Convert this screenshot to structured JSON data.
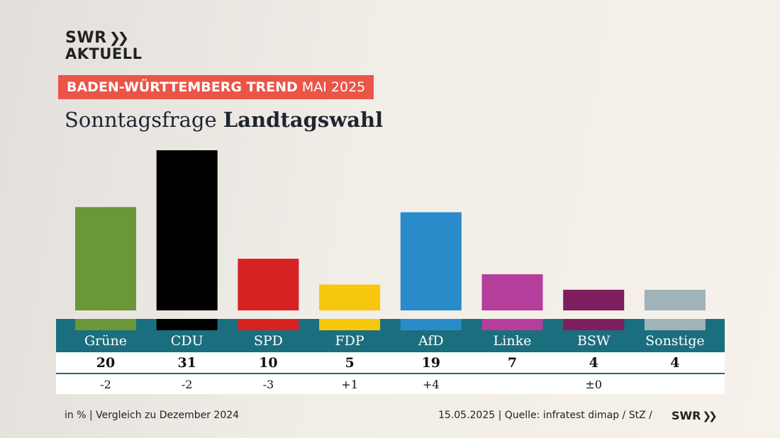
{
  "brand": {
    "line1": "SWR",
    "line2": "AKTUELL",
    "arrows": "❯❯"
  },
  "banner": {
    "bold": "BADEN-WÜRTTEMBERG TREND",
    "rest": "MAI 2025"
  },
  "headline": {
    "normal": "Sonntagsfrage",
    "bold": "Landtagswahl"
  },
  "footer": {
    "left": "in % | Vergleich zu Dezember 2024",
    "right": "15.05.2025 | Quelle: infratest dimap / StZ /",
    "logo": "SWR"
  },
  "colors": {
    "band": "#1b6e7e",
    "banner": "#ea5548"
  },
  "chart_data": {
    "type": "bar",
    "categories": [
      "Grüne",
      "CDU",
      "SPD",
      "FDP",
      "AfD",
      "Linke",
      "BSW",
      "Sonstige"
    ],
    "values": [
      20,
      31,
      10,
      5,
      19,
      7,
      4,
      4
    ],
    "value_labels": [
      "20",
      "31",
      "10",
      "5",
      "19",
      "7",
      "4",
      "4"
    ],
    "changes": [
      "-2",
      "-2",
      "-3",
      "+1",
      "+4",
      "",
      "±0",
      ""
    ],
    "colors": [
      "#6a9738",
      "#000000",
      "#d72222",
      "#f7c70c",
      "#2a8bcb",
      "#b53d9c",
      "#7d1f5e",
      "#9fb3b8"
    ],
    "unit": "%",
    "ylim": [
      0,
      31
    ]
  }
}
